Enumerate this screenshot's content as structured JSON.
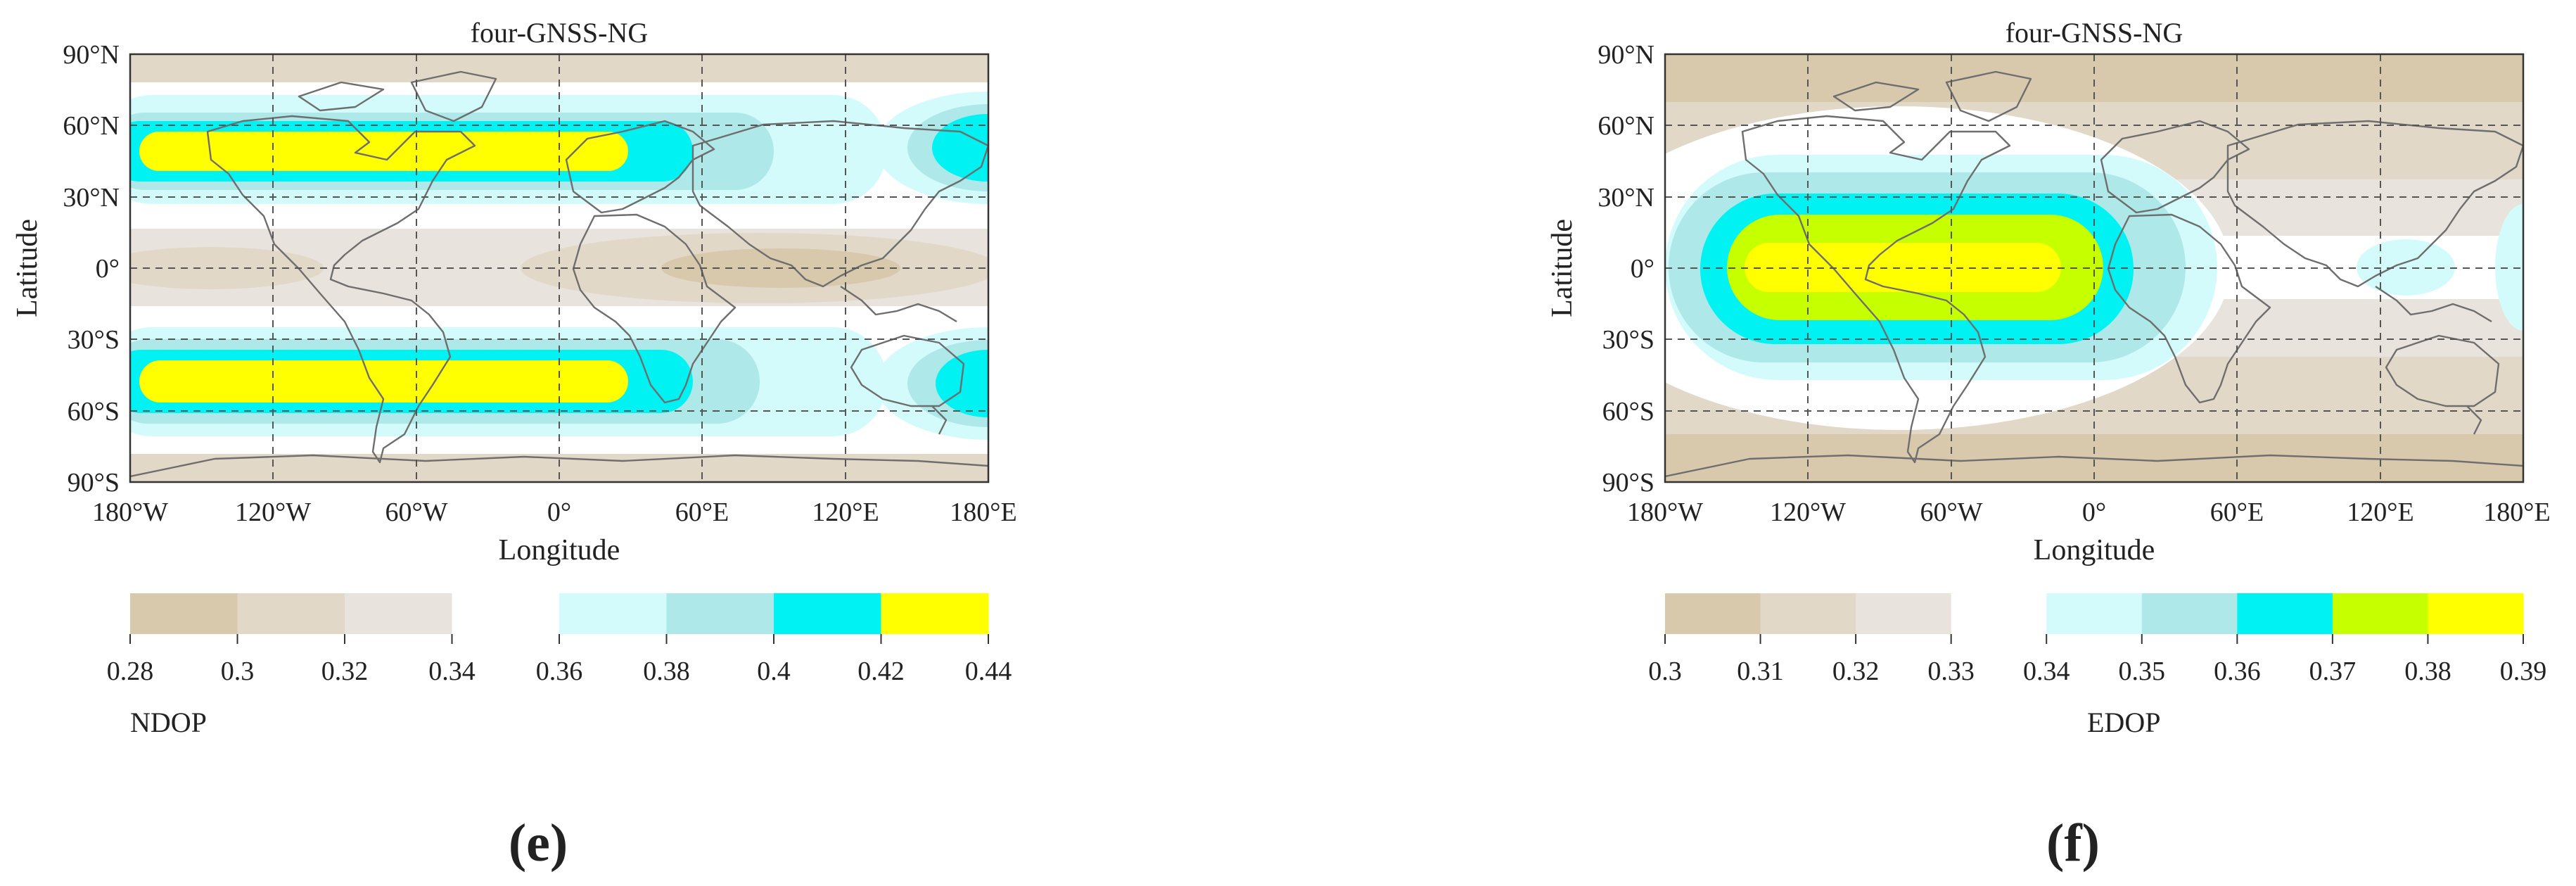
{
  "chart_data": [
    {
      "type": "heatmap",
      "panel_label": "(e)",
      "title": "four-GNSS-NG",
      "xlabel": "Longitude",
      "ylabel": "Latitude",
      "xlim": [
        -180,
        180
      ],
      "ylim": [
        -90,
        90
      ],
      "x_ticks": [
        "180°W",
        "120°W",
        "60°W",
        "0°",
        "60°E",
        "120°E",
        "180°E"
      ],
      "y_ticks": [
        "90°N",
        "60°N",
        "30°N",
        "0°",
        "30°S",
        "60°S",
        "90°S"
      ],
      "grid": true,
      "colorbar": {
        "label": "NDOP",
        "ticks": [
          "0.28",
          "0.3",
          "0.32",
          "0.34",
          "0.36",
          "0.38",
          "0.4",
          "0.42",
          "0.44"
        ],
        "levels": [
          0.28,
          0.3,
          0.32,
          0.34,
          0.36,
          0.38,
          0.4,
          0.42,
          0.44
        ],
        "colors": [
          "#d8c9ad",
          "#e2d8c8",
          "#e8e3dc",
          "#ffffff",
          "#d4fbfb",
          "#aee8e8",
          "#00f2f2",
          "#ffff00"
        ]
      },
      "regions": [
        {
          "desc": "northern mid-latitude band",
          "lon_range": [
            -170,
            30
          ],
          "lat_center": 50,
          "max_value": 0.44
        },
        {
          "desc": "southern mid-latitude band",
          "lon_range": [
            -160,
            30
          ],
          "lat_center": -50,
          "max_value": 0.44
        },
        {
          "desc": "equatorial minimum",
          "lon_range": [
            60,
            140
          ],
          "lat_center": 0,
          "min_value": 0.28
        }
      ]
    },
    {
      "type": "heatmap",
      "panel_label": "(f)",
      "title": "four-GNSS-NG",
      "xlabel": "Longitude",
      "ylabel": "Latitude",
      "xlim": [
        -180,
        180
      ],
      "ylim": [
        -90,
        90
      ],
      "x_ticks": [
        "180°W",
        "120°W",
        "60°W",
        "0°",
        "60°E",
        "120°E",
        "180°E"
      ],
      "y_ticks": [
        "90°N",
        "60°N",
        "30°N",
        "0°",
        "30°S",
        "60°S",
        "90°S"
      ],
      "grid": true,
      "colorbar": {
        "label": "EDOP",
        "ticks": [
          "0.3",
          "0.31",
          "0.32",
          "0.33",
          "0.34",
          "0.35",
          "0.36",
          "0.37",
          "0.38",
          "0.39"
        ],
        "levels": [
          0.3,
          0.31,
          0.32,
          0.33,
          0.34,
          0.35,
          0.36,
          0.37,
          0.38,
          0.39
        ],
        "colors": [
          "#d8c9ad",
          "#e2d8c8",
          "#e8e3dc",
          "#ffffff",
          "#d4fbfb",
          "#aee8e8",
          "#00f2f2",
          "#c6ff00",
          "#ffff00"
        ]
      },
      "regions": [
        {
          "desc": "equatorial maximum over Americas",
          "lon_range": [
            -140,
            0
          ],
          "lat_center": 0,
          "max_value": 0.39
        },
        {
          "desc": "polar minima",
          "lon_range": [
            -180,
            180
          ],
          "lat_center": 75,
          "min_value": 0.3
        }
      ]
    }
  ]
}
